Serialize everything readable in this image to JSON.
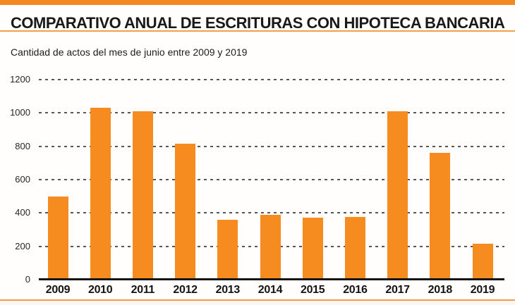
{
  "header": {
    "title": "COMPARATIVO ANUAL DE ESCRITURAS CON HIPOTECA BANCARIA",
    "subtitle": "Cantidad de actos del mes de junio entre 2009 y 2019"
  },
  "colors": {
    "accent_orange": "#F6871F",
    "bar_orange": "#F68B1F",
    "rule_orange": "#F59C4B",
    "grid_gray": "#55565A",
    "axis_black": "#141414",
    "footer_cream": "#FBF7F0"
  },
  "chart_data": {
    "type": "bar",
    "title": "COMPARATIVO ANUAL DE ESCRITURAS CON HIPOTECA BANCARIA",
    "subtitle": "Cantidad de actos del mes de junio entre 2009 y 2019",
    "categories": [
      "2009",
      "2010",
      "2011",
      "2012",
      "2013",
      "2014",
      "2015",
      "2016",
      "2017",
      "2018",
      "2019"
    ],
    "values": [
      500,
      1030,
      1010,
      815,
      360,
      390,
      370,
      375,
      1010,
      760,
      215
    ],
    "xlabel": "",
    "ylabel": "",
    "ylim": [
      0,
      1200
    ],
    "yticks": [
      0,
      200,
      400,
      600,
      800,
      1000,
      1200
    ],
    "grid": "horizontal-dashed",
    "legend": "none",
    "bar_color": "#F68B1F"
  }
}
